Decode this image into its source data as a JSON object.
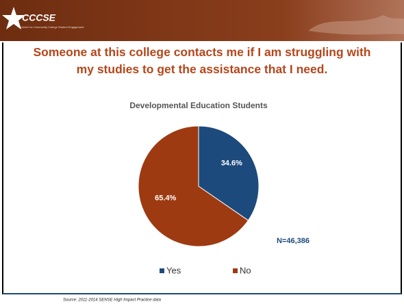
{
  "header": {
    "logo": "CCCSE",
    "logo_subtext": "Center for Community College Student Engagement"
  },
  "chart_data": {
    "type": "pie",
    "title": "Someone at this college contacts me if I am struggling with my studies to get the assistance that I need.",
    "subtitle": "Developmental Education Students",
    "categories": [
      "Yes",
      "No"
    ],
    "values": [
      34.6,
      65.4
    ],
    "value_labels": [
      "34.6%",
      "65.4%"
    ],
    "colors": [
      "#1c4a7c",
      "#9e3a11"
    ],
    "annotation": "N=46,386",
    "legend": "bottom"
  },
  "footer": {
    "source": "Source: 2011-2014 SENSE High Impact Practice data"
  }
}
